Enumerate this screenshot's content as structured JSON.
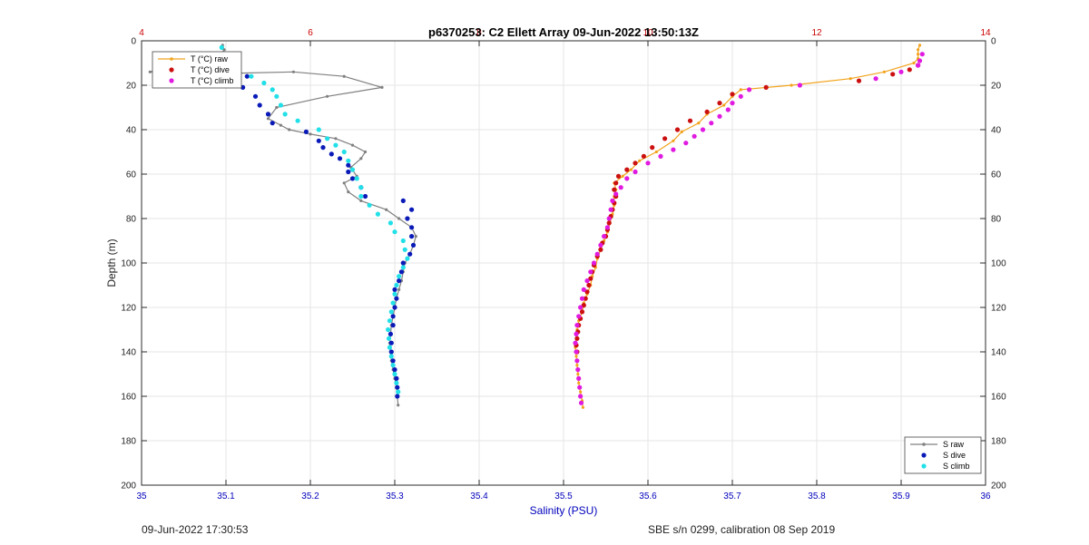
{
  "chart_data": {
    "type": "scatter",
    "title": "p6370253: C2 Ellett Array 09-Jun-2022 13:50:13Z",
    "xlabel": "Salinity (PSU)",
    "ylabel": "Depth (m)",
    "xlim": [
      35,
      36
    ],
    "x2lim": [
      4,
      14
    ],
    "ylim": [
      0,
      200
    ],
    "x_ticks": [
      "35",
      "35.1",
      "35.2",
      "35.3",
      "35.4",
      "35.5",
      "35.6",
      "35.7",
      "35.8",
      "35.9",
      "36"
    ],
    "x2_ticks": [
      "4",
      "6",
      "8",
      "10",
      "12",
      "14"
    ],
    "y_ticks": [
      "0",
      "20",
      "40",
      "60",
      "80",
      "100",
      "120",
      "140",
      "160",
      "180",
      "200"
    ],
    "y_reversed": true,
    "grid": true,
    "legend_top_left": [
      "T (°C) raw",
      "T (°C) dive",
      "T (°C) climb"
    ],
    "legend_bottom_right": [
      "S raw",
      "S dive",
      "S climb"
    ],
    "colors": {
      "t_raw": "#f2a31c",
      "t_dive": "#cc1010",
      "t_climb": "#e01ae0",
      "s_raw": "#808080",
      "s_dive": "#0a1ab8",
      "s_climb": "#22e0e8",
      "axis_top": "#cc0000",
      "axis_bottom": "#0000bb"
    },
    "series": [
      {
        "name": "S raw",
        "axis": "salinity",
        "values": [
          [
            35.096,
            2
          ],
          [
            35.098,
            4
          ],
          [
            35.094,
            6
          ],
          [
            35.09,
            8
          ],
          [
            35.07,
            10
          ],
          [
            35.03,
            12
          ],
          [
            35.01,
            14
          ],
          [
            35.06,
            15
          ],
          [
            35.18,
            14
          ],
          [
            35.24,
            16
          ],
          [
            35.285,
            21
          ],
          [
            35.22,
            25
          ],
          [
            35.16,
            30
          ],
          [
            35.15,
            35
          ],
          [
            35.165,
            38
          ],
          [
            35.175,
            40
          ],
          [
            35.2,
            42
          ],
          [
            35.23,
            44
          ],
          [
            35.25,
            47
          ],
          [
            35.265,
            50
          ],
          [
            35.26,
            53
          ],
          [
            35.248,
            57
          ],
          [
            35.255,
            61
          ],
          [
            35.24,
            64
          ],
          [
            35.245,
            68
          ],
          [
            35.26,
            72
          ],
          [
            35.29,
            76
          ],
          [
            35.305,
            80
          ],
          [
            35.32,
            84
          ],
          [
            35.325,
            88
          ],
          [
            35.322,
            92
          ],
          [
            35.318,
            96
          ],
          [
            35.312,
            100
          ],
          [
            35.31,
            104
          ],
          [
            35.308,
            108
          ],
          [
            35.305,
            112
          ],
          [
            35.302,
            116
          ],
          [
            35.3,
            120
          ],
          [
            35.298,
            124
          ],
          [
            35.296,
            128
          ],
          [
            35.295,
            132
          ],
          [
            35.294,
            136
          ],
          [
            35.295,
            140
          ],
          [
            35.296,
            144
          ],
          [
            35.298,
            148
          ],
          [
            35.3,
            152
          ],
          [
            35.302,
            156
          ],
          [
            35.303,
            160
          ],
          [
            35.304,
            164
          ]
        ]
      },
      {
        "name": "S dive",
        "axis": "salinity",
        "values": [
          [
            35.11,
            11
          ],
          [
            35.125,
            16
          ],
          [
            35.12,
            21
          ],
          [
            35.135,
            25
          ],
          [
            35.14,
            29
          ],
          [
            35.15,
            33
          ],
          [
            35.155,
            37
          ],
          [
            35.195,
            41
          ],
          [
            35.21,
            45
          ],
          [
            35.215,
            48
          ],
          [
            35.225,
            51
          ],
          [
            35.235,
            53
          ],
          [
            35.245,
            56
          ],
          [
            35.245,
            59
          ],
          [
            35.25,
            62
          ],
          [
            35.26,
            66
          ],
          [
            35.265,
            70
          ],
          [
            35.31,
            72
          ],
          [
            35.32,
            76
          ],
          [
            35.315,
            80
          ],
          [
            35.32,
            84
          ],
          [
            35.32,
            88
          ],
          [
            35.322,
            92
          ],
          [
            35.318,
            96
          ],
          [
            35.31,
            100
          ],
          [
            35.308,
            104
          ],
          [
            35.305,
            108
          ],
          [
            35.3,
            112
          ],
          [
            35.302,
            116
          ],
          [
            35.3,
            120
          ],
          [
            35.298,
            124
          ],
          [
            35.298,
            128
          ],
          [
            35.295,
            132
          ],
          [
            35.296,
            136
          ],
          [
            35.296,
            140
          ],
          [
            35.298,
            144
          ],
          [
            35.3,
            148
          ],
          [
            35.302,
            152
          ],
          [
            35.303,
            156
          ],
          [
            35.303,
            160
          ]
        ]
      },
      {
        "name": "S climb",
        "axis": "salinity",
        "values": [
          [
            35.095,
            3
          ],
          [
            35.09,
            6
          ],
          [
            35.096,
            8
          ],
          [
            35.1,
            10
          ],
          [
            35.13,
            16
          ],
          [
            35.145,
            19
          ],
          [
            35.155,
            22
          ],
          [
            35.16,
            25
          ],
          [
            35.165,
            29
          ],
          [
            35.17,
            33
          ],
          [
            35.185,
            36
          ],
          [
            35.21,
            40
          ],
          [
            35.22,
            44
          ],
          [
            35.23,
            47
          ],
          [
            35.24,
            50
          ],
          [
            35.245,
            54
          ],
          [
            35.25,
            58
          ],
          [
            35.255,
            62
          ],
          [
            35.26,
            66
          ],
          [
            35.26,
            70
          ],
          [
            35.27,
            74
          ],
          [
            35.28,
            78
          ],
          [
            35.295,
            82
          ],
          [
            35.3,
            86
          ],
          [
            35.31,
            90
          ],
          [
            35.312,
            94
          ],
          [
            35.315,
            98
          ],
          [
            35.31,
            102
          ],
          [
            35.305,
            106
          ],
          [
            35.302,
            110
          ],
          [
            35.3,
            114
          ],
          [
            35.298,
            118
          ],
          [
            35.296,
            122
          ],
          [
            35.294,
            126
          ],
          [
            35.292,
            130
          ],
          [
            35.293,
            134
          ],
          [
            35.294,
            138
          ],
          [
            35.296,
            142
          ],
          [
            35.298,
            146
          ],
          [
            35.3,
            150
          ],
          [
            35.302,
            154
          ],
          [
            35.304,
            158
          ]
        ]
      },
      {
        "name": "T (°C) raw",
        "axis": "temperature",
        "values": [
          [
            13.22,
            2
          ],
          [
            13.2,
            4
          ],
          [
            13.2,
            6
          ],
          [
            13.2,
            8
          ],
          [
            13.15,
            10
          ],
          [
            12.8,
            14
          ],
          [
            12.4,
            17
          ],
          [
            11.7,
            20
          ],
          [
            11.1,
            22
          ],
          [
            11.0,
            25
          ],
          [
            10.9,
            29
          ],
          [
            10.7,
            33
          ],
          [
            10.6,
            37
          ],
          [
            10.4,
            41
          ],
          [
            10.3,
            45
          ],
          [
            10.1,
            50
          ],
          [
            9.9,
            54
          ],
          [
            9.8,
            58
          ],
          [
            9.7,
            61
          ],
          [
            9.6,
            64
          ],
          [
            9.62,
            67
          ],
          [
            9.6,
            70
          ],
          [
            9.6,
            74
          ],
          [
            9.58,
            78
          ],
          [
            9.55,
            82
          ],
          [
            9.52,
            86
          ],
          [
            9.48,
            90
          ],
          [
            9.44,
            94
          ],
          [
            9.4,
            98
          ],
          [
            9.38,
            102
          ],
          [
            9.34,
            106
          ],
          [
            9.32,
            110
          ],
          [
            9.28,
            114
          ],
          [
            9.24,
            118
          ],
          [
            9.22,
            122
          ],
          [
            9.18,
            126
          ],
          [
            9.16,
            130
          ],
          [
            9.15,
            134
          ],
          [
            9.14,
            138
          ],
          [
            9.15,
            142
          ],
          [
            9.16,
            146
          ],
          [
            9.17,
            150
          ],
          [
            9.18,
            154
          ],
          [
            9.2,
            158
          ],
          [
            9.22,
            162
          ],
          [
            9.23,
            165
          ]
        ]
      },
      {
        "name": "T (°C) dive",
        "axis": "temperature",
        "values": [
          [
            13.2,
            11
          ],
          [
            13.1,
            13
          ],
          [
            12.9,
            15
          ],
          [
            12.5,
            18
          ],
          [
            11.4,
            21
          ],
          [
            11.0,
            24
          ],
          [
            10.85,
            28
          ],
          [
            10.7,
            32
          ],
          [
            10.5,
            36
          ],
          [
            10.35,
            40
          ],
          [
            10.2,
            44
          ],
          [
            10.05,
            48
          ],
          [
            9.95,
            52
          ],
          [
            9.85,
            55
          ],
          [
            9.75,
            58
          ],
          [
            9.65,
            61
          ],
          [
            9.62,
            64
          ],
          [
            9.6,
            67
          ],
          [
            9.62,
            70
          ],
          [
            9.6,
            73
          ],
          [
            9.58,
            76
          ],
          [
            9.56,
            79
          ],
          [
            9.54,
            82
          ],
          [
            9.52,
            85
          ],
          [
            9.5,
            88
          ],
          [
            9.46,
            91
          ],
          [
            9.44,
            94
          ],
          [
            9.4,
            97
          ],
          [
            9.36,
            101
          ],
          [
            9.34,
            104
          ],
          [
            9.32,
            107
          ],
          [
            9.3,
            110
          ],
          [
            9.28,
            113
          ],
          [
            9.26,
            116
          ],
          [
            9.24,
            119
          ],
          [
            9.22,
            122
          ],
          [
            9.2,
            125
          ],
          [
            9.18,
            128
          ],
          [
            9.17,
            131
          ],
          [
            9.16,
            134
          ],
          [
            9.15,
            137
          ],
          [
            9.16,
            140
          ]
        ]
      },
      {
        "name": "T (°C) climb",
        "axis": "temperature",
        "values": [
          [
            13.25,
            6
          ],
          [
            13.22,
            9
          ],
          [
            13.2,
            11
          ],
          [
            13.0,
            14
          ],
          [
            12.7,
            17
          ],
          [
            11.8,
            20
          ],
          [
            11.2,
            22
          ],
          [
            11.1,
            25
          ],
          [
            11.0,
            28
          ],
          [
            10.95,
            31
          ],
          [
            10.85,
            34
          ],
          [
            10.75,
            37
          ],
          [
            10.65,
            40
          ],
          [
            10.55,
            43
          ],
          [
            10.45,
            46
          ],
          [
            10.3,
            49
          ],
          [
            10.15,
            52
          ],
          [
            10.0,
            55
          ],
          [
            9.85,
            59
          ],
          [
            9.75,
            62
          ],
          [
            9.68,
            66
          ],
          [
            9.62,
            69
          ],
          [
            9.58,
            72
          ],
          [
            9.56,
            76
          ],
          [
            9.54,
            80
          ],
          [
            9.52,
            84
          ],
          [
            9.48,
            88
          ],
          [
            9.44,
            92
          ],
          [
            9.4,
            96
          ],
          [
            9.36,
            100
          ],
          [
            9.32,
            104
          ],
          [
            9.28,
            108
          ],
          [
            9.24,
            112
          ],
          [
            9.22,
            116
          ],
          [
            9.2,
            120
          ],
          [
            9.18,
            124
          ],
          [
            9.16,
            128
          ],
          [
            9.15,
            132
          ],
          [
            9.14,
            136
          ],
          [
            9.15,
            140
          ],
          [
            9.16,
            144
          ],
          [
            9.17,
            148
          ],
          [
            9.18,
            152
          ],
          [
            9.19,
            156
          ],
          [
            9.2,
            160
          ],
          [
            9.21,
            163
          ]
        ]
      }
    ]
  },
  "footer": {
    "left": "09-Jun-2022 17:30:53",
    "right": "SBE s/n 0299, calibration 08 Sep 2019"
  }
}
